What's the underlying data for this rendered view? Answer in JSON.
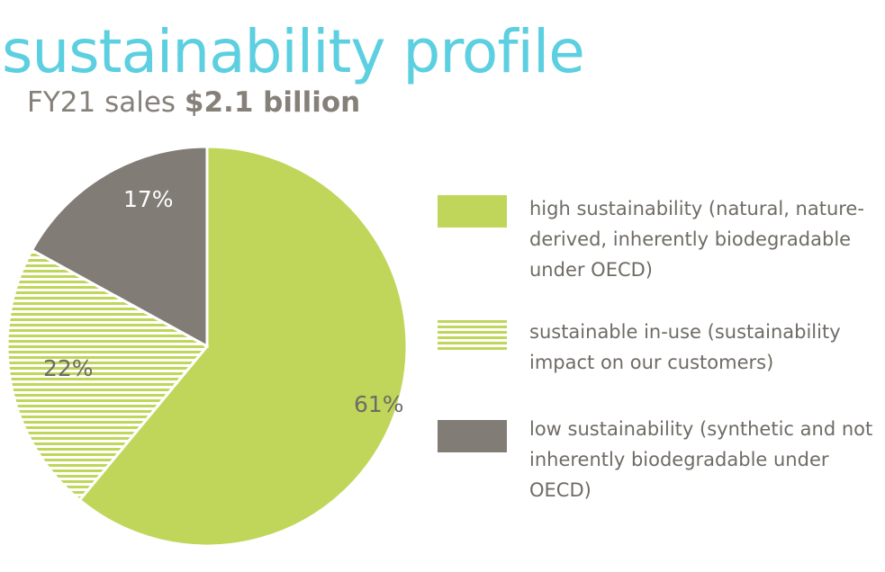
{
  "header": {
    "title": "sustainability profile",
    "subtitle_prefix": "FY21 sales ",
    "subtitle_strong": "$2.1 billion"
  },
  "colors": {
    "title": "#5ccfe0",
    "text": "#858079",
    "high": "#bfd65a",
    "low": "#827c76",
    "stripe_bg": "#ffffff"
  },
  "chart_data": {
    "type": "pie",
    "title": "sustainability profile",
    "subtitle": "FY21 sales $2.1 billion",
    "slices": [
      {
        "key": "high",
        "label": "high sustainability (natural, nature-derived, inherently biodegradable under OECD)",
        "value": 61,
        "display": "61%",
        "fill": "solid-green"
      },
      {
        "key": "in_use",
        "label": "sustainable in-use (sustainability impact on our customers)",
        "value": 22,
        "display": "22%",
        "fill": "striped-green"
      },
      {
        "key": "low",
        "label": "low sustainability (synthetic and not inherently biodegradable under OECD)",
        "value": 17,
        "display": "17%",
        "fill": "solid-gray"
      }
    ],
    "legend_position": "right"
  }
}
